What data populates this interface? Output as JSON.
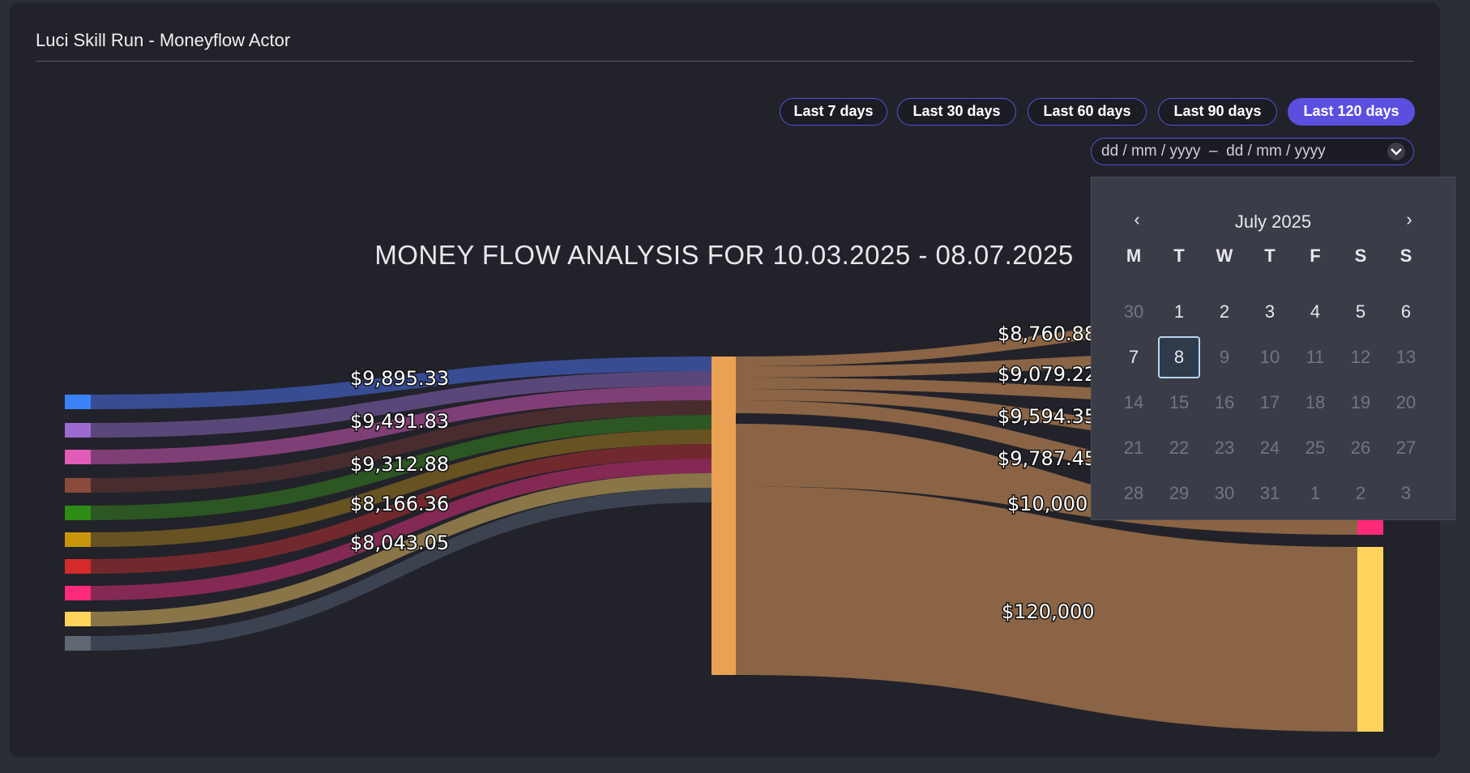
{
  "header": {
    "title": "Luci Skill Run - Moneyflow Actor"
  },
  "range_buttons": [
    {
      "label": "Last 7 days",
      "active": false
    },
    {
      "label": "Last 30 days",
      "active": false
    },
    {
      "label": "Last 60 days",
      "active": false
    },
    {
      "label": "Last 90 days",
      "active": false
    },
    {
      "label": "Last 120 days",
      "active": true
    }
  ],
  "date_range": {
    "value": "dd / mm / yyyy  –  dd / mm / yyyy",
    "caret_icon": "chevron-down-icon"
  },
  "calendar": {
    "month": "July 2025",
    "weekdays": [
      "M",
      "T",
      "W",
      "T",
      "F",
      "S",
      "S"
    ],
    "days": [
      {
        "d": "30",
        "dim": true
      },
      {
        "d": "1",
        "dim": false
      },
      {
        "d": "2",
        "dim": false
      },
      {
        "d": "3",
        "dim": false
      },
      {
        "d": "4",
        "dim": false
      },
      {
        "d": "5",
        "dim": false
      },
      {
        "d": "6",
        "dim": false
      },
      {
        "d": "7",
        "dim": false
      },
      {
        "d": "8",
        "dim": false,
        "selected": true
      },
      {
        "d": "9",
        "dim": true
      },
      {
        "d": "10",
        "dim": true
      },
      {
        "d": "11",
        "dim": true
      },
      {
        "d": "12",
        "dim": true
      },
      {
        "d": "13",
        "dim": true
      },
      {
        "d": "14",
        "dim": true
      },
      {
        "d": "15",
        "dim": true
      },
      {
        "d": "16",
        "dim": true
      },
      {
        "d": "17",
        "dim": true
      },
      {
        "d": "18",
        "dim": true
      },
      {
        "d": "19",
        "dim": true
      },
      {
        "d": "20",
        "dim": true
      },
      {
        "d": "21",
        "dim": true
      },
      {
        "d": "22",
        "dim": true
      },
      {
        "d": "23",
        "dim": true
      },
      {
        "d": "24",
        "dim": true
      },
      {
        "d": "25",
        "dim": true
      },
      {
        "d": "26",
        "dim": true
      },
      {
        "d": "27",
        "dim": true
      },
      {
        "d": "28",
        "dim": true
      },
      {
        "d": "29",
        "dim": true
      },
      {
        "d": "30",
        "dim": true
      },
      {
        "d": "31",
        "dim": true
      },
      {
        "d": "1",
        "dim": true
      },
      {
        "d": "2",
        "dim": true
      },
      {
        "d": "3",
        "dim": true
      }
    ]
  },
  "chart_data": {
    "type": "sankey",
    "title": "MONEY FLOW ANALYSIS FOR 10.03.2025 - 08.07.2025",
    "sources": [
      {
        "color": "#3b82f6",
        "link_color": "#3a4f9a"
      },
      {
        "color": "#9b6bd0",
        "link_color": "#5e4a7e"
      },
      {
        "color": "#e05cb8",
        "link_color": "#86407a"
      },
      {
        "color": "#8b4a3c",
        "link_color": "#4c2e2e"
      },
      {
        "color": "#2e8b13",
        "link_color": "#2d5a22"
      },
      {
        "color": "#c9950a",
        "link_color": "#6b5522"
      },
      {
        "color": "#d42a2a",
        "link_color": "#772a2e"
      },
      {
        "color": "#ff2a78",
        "link_color": "#8a2a55"
      },
      {
        "color": "#ffd45c",
        "link_color": "#8f7a4a"
      },
      {
        "color": "#5f6772",
        "link_color": "#3e4652"
      }
    ],
    "incoming_labels": [
      "$9,895.33",
      "$9,491.83",
      "$9,312.88",
      "$8,166.36",
      "$8,043.05"
    ],
    "hub_color": "#e9a154",
    "outgoing_link_color": "#8a6444",
    "outgoing_labels": [
      "$8,760.88",
      "$9,079.22",
      "$9,594.35",
      "$9,787.45",
      "$10,000",
      "$120,000"
    ],
    "target_colors": [
      "#ff2a78",
      "#ffd45c"
    ]
  }
}
